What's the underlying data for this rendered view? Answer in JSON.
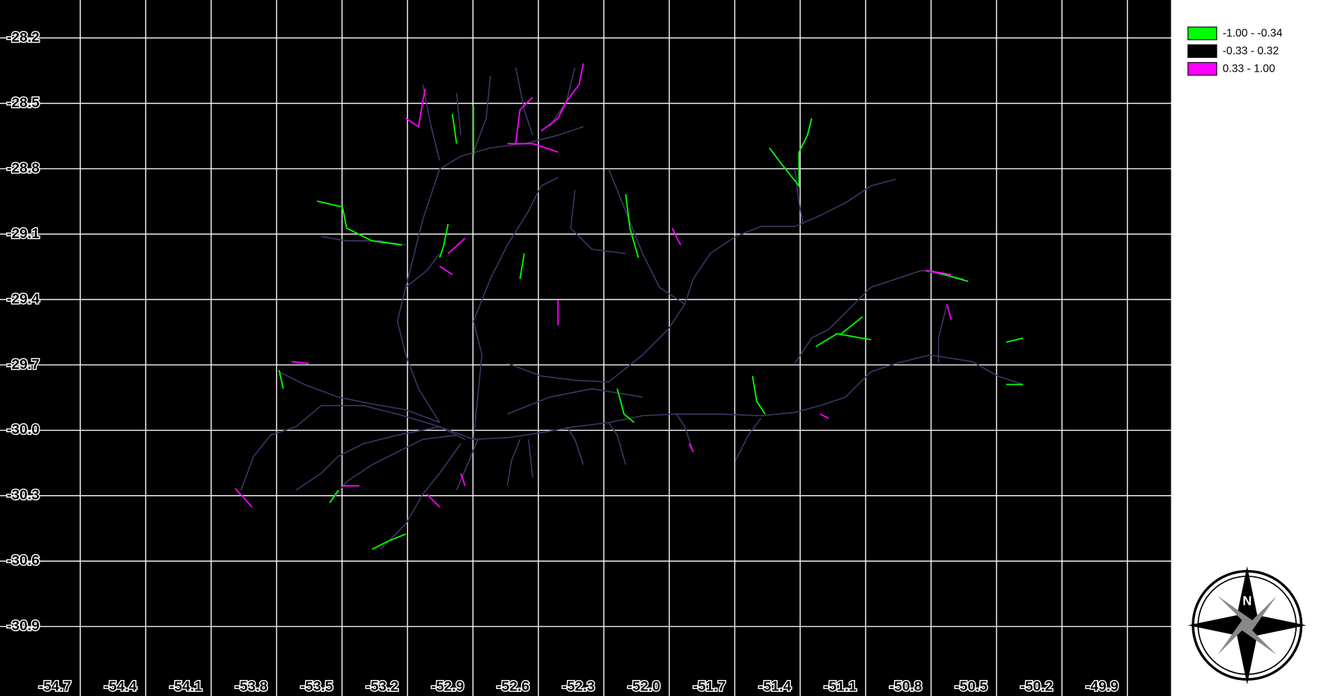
{
  "map": {
    "xlim": [
      -55.068,
      -49.7
    ],
    "ylim": [
      -28.026,
      -31.22
    ],
    "xticks": [
      -54.7,
      -54.4,
      -54.1,
      -53.8,
      -53.5,
      -53.2,
      -52.9,
      -52.6,
      -52.3,
      {
        "value": -52,
        "label": "-52.0"
      },
      -51.7,
      -51.4,
      -51.1,
      -50.8,
      -50.5,
      -50.2,
      -49.9
    ],
    "yticks": [
      -28.2,
      -28.5,
      -28.8,
      -29.1,
      -29.4,
      -29.7,
      {
        "value": -30,
        "label": "-30.0"
      },
      -30.3,
      -30.6,
      -30.9
    ],
    "grid": true,
    "legend": [
      {
        "label": "-1.00 - -0.34",
        "color": "#00ff00"
      },
      {
        "label": "-0.33 - 0.32",
        "color": "#000000"
      },
      {
        "label": "0.33 - 1.00",
        "color": "#ff00ff"
      }
    ],
    "compass": "N"
  }
}
